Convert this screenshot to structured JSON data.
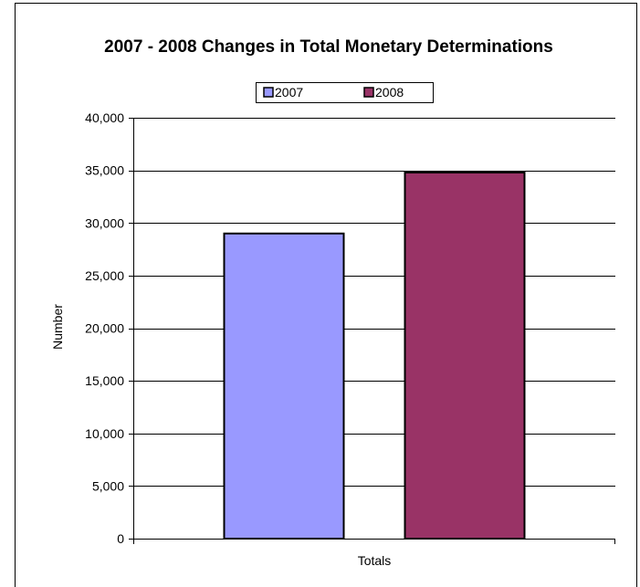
{
  "chart_data": {
    "type": "bar",
    "title": "2007 - 2008 Changes in Total Monetary Determinations",
    "xlabel": "",
    "ylabel": "Number",
    "categories": [
      "Totals"
    ],
    "series": [
      {
        "name": "2007",
        "values": [
          29000
        ],
        "color": "#9999ff"
      },
      {
        "name": "2008",
        "values": [
          34800
        ],
        "color": "#993366"
      }
    ],
    "ylim": [
      0,
      40000
    ],
    "yticks": [
      0,
      5000,
      10000,
      15000,
      20000,
      25000,
      30000,
      35000,
      40000
    ],
    "ytick_labels": [
      "0",
      "5,000",
      "10,000",
      "15,000",
      "20,000",
      "25,000",
      "30,000",
      "35,000",
      "40,000"
    ],
    "grid": true,
    "legend": "top"
  }
}
